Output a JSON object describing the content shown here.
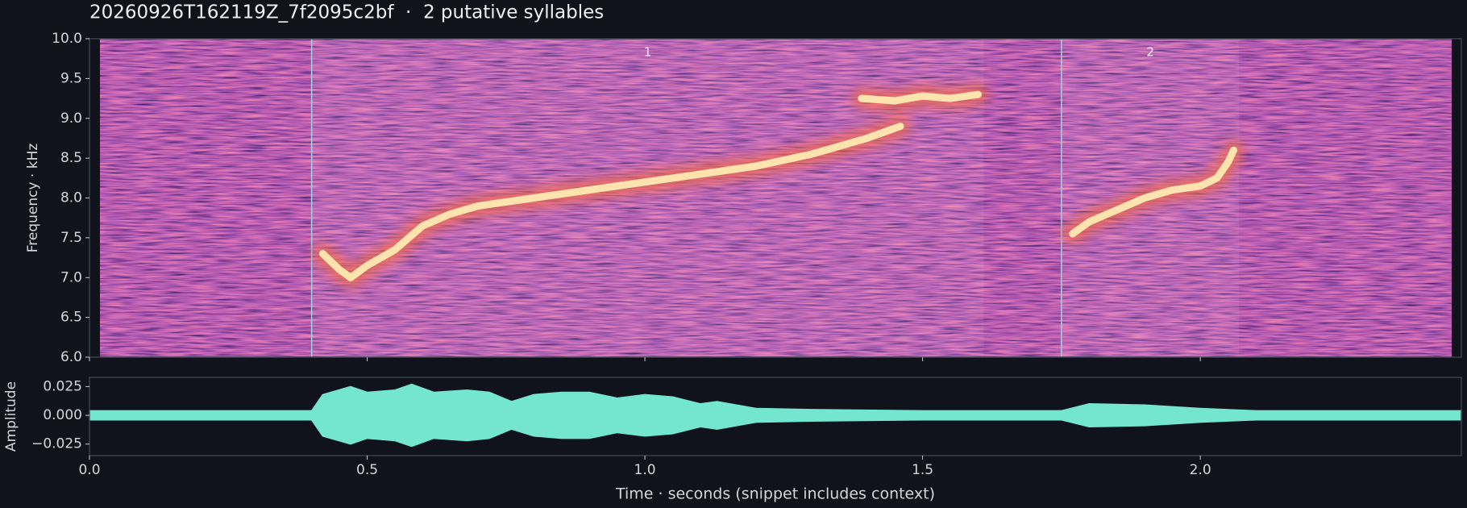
{
  "title": "20260926T162119Z_7f2095c2bf  ·  2 putative syllables",
  "chart_data": [
    {
      "type": "spectrogram",
      "ylabel": "Frequency · kHz",
      "xlim": [
        0,
        2.47
      ],
      "ylim": [
        6,
        10
      ],
      "spectrogram_xlim": [
        0.019,
        2.452
      ],
      "yticks": [
        {
          "value": 6,
          "label": "6.0"
        },
        {
          "value": 6.5,
          "label": "6.5"
        },
        {
          "value": 7,
          "label": "7.0"
        },
        {
          "value": 7.5,
          "label": "7.5"
        },
        {
          "value": 8,
          "label": "8.0"
        },
        {
          "value": 8.5,
          "label": "8.5"
        },
        {
          "value": 9,
          "label": "9.0"
        },
        {
          "value": 9.5,
          "label": "9.5"
        },
        {
          "value": 10,
          "label": "10.0"
        }
      ],
      "syllables": [
        {
          "label": "1",
          "start": 0.4,
          "end": 1.61
        },
        {
          "label": "2",
          "start": 1.75,
          "end": 2.07
        }
      ],
      "contour": {
        "x": [
          0.42,
          0.45,
          0.47,
          0.5,
          0.55,
          0.6,
          0.65,
          0.7,
          0.8,
          0.9,
          1.0,
          1.1,
          1.2,
          1.3,
          1.4,
          1.46,
          1.47,
          1.39,
          1.45,
          1.5,
          1.55,
          1.6,
          1.61,
          1.77,
          1.8,
          1.85,
          1.9,
          1.95,
          2.0,
          2.03,
          2.05,
          2.06
        ],
        "y": [
          7.3,
          7.1,
          7.0,
          7.15,
          7.35,
          7.65,
          7.8,
          7.9,
          8.0,
          8.1,
          8.2,
          8.3,
          8.4,
          8.55,
          8.75,
          8.9,
          null,
          9.25,
          9.22,
          9.28,
          9.25,
          9.3,
          null,
          7.55,
          7.7,
          7.85,
          8.0,
          8.1,
          8.15,
          8.25,
          8.45,
          8.6
        ]
      }
    },
    {
      "type": "waveform",
      "ylabel": "Amplitude",
      "xlabel": "Time · seconds (snippet includes context)",
      "color": "#74e6cf",
      "xlim": [
        0,
        2.47
      ],
      "ylim": [
        -0.035,
        0.033
      ],
      "xticks": [
        {
          "value": 0,
          "label": "0.0"
        },
        0.5,
        {
          "value": 1,
          "label": "1.0"
        },
        1.5,
        {
          "value": 2,
          "label": "2.0"
        }
      ],
      "yticks": [
        {
          "value": -0.025,
          "label": "−0.025"
        },
        {
          "value": 0,
          "label": "0.000"
        },
        0.025
      ],
      "x": [
        0,
        0.1,
        0.2,
        0.3,
        0.4,
        0.42,
        0.47,
        0.5,
        0.55,
        0.58,
        0.62,
        0.68,
        0.72,
        0.76,
        0.8,
        0.85,
        0.9,
        0.95,
        1.0,
        1.05,
        1.1,
        1.13,
        1.2,
        1.3,
        1.5,
        1.75,
        1.8,
        1.9,
        2.0,
        2.1,
        2.3,
        2.47
      ],
      "values": [
        0.004,
        0.004,
        0.004,
        0.004,
        0.004,
        0.018,
        0.025,
        0.02,
        0.022,
        0.027,
        0.02,
        0.022,
        0.02,
        0.012,
        0.018,
        0.02,
        0.02,
        0.015,
        0.018,
        0.016,
        0.01,
        0.012,
        0.006,
        0.005,
        0.004,
        0.004,
        0.01,
        0.009,
        0.006,
        0.004,
        0.004,
        0.004
      ]
    }
  ]
}
